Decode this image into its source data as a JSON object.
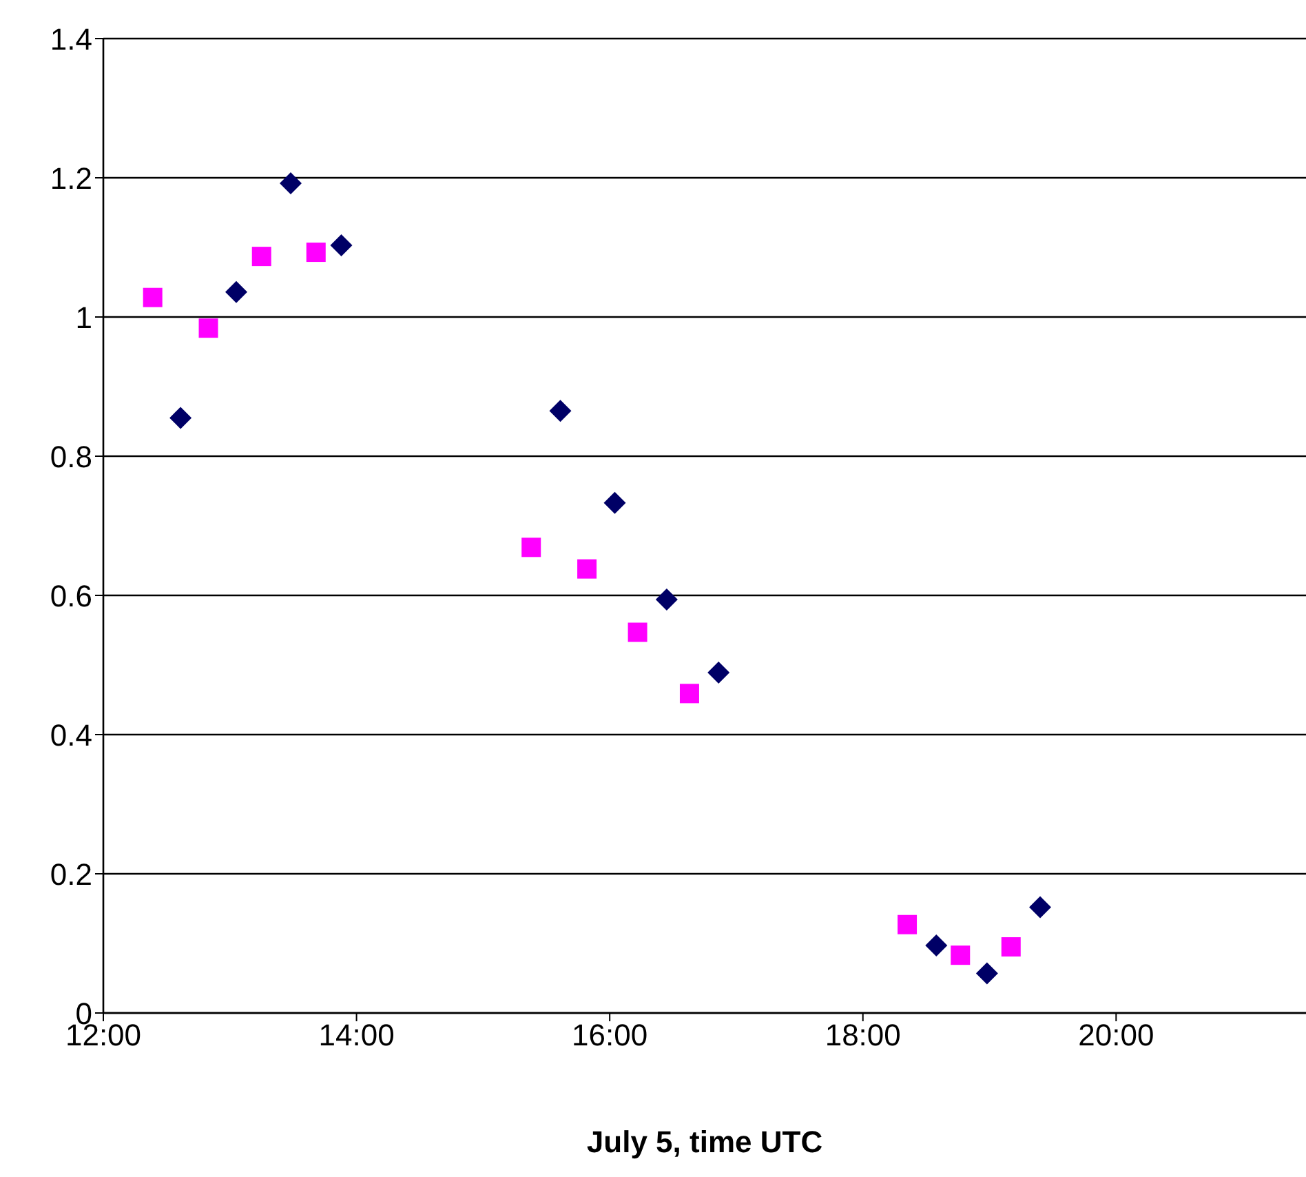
{
  "chart_data": {
    "type": "scatter",
    "xlabel": "July 5, time UTC",
    "xlim": [
      12,
      21.5
    ],
    "xticks": [
      {
        "value": 12,
        "label": "12:00"
      },
      {
        "value": 14,
        "label": "14:00"
      },
      {
        "value": 16,
        "label": "16:00"
      },
      {
        "value": 18,
        "label": "18:00"
      },
      {
        "value": 20,
        "label": "20:00"
      }
    ],
    "ylim": [
      0,
      1.4
    ],
    "yticks": [
      0,
      0.2,
      0.4,
      0.6,
      0.8,
      1,
      1.2,
      1.4
    ],
    "grid": "y",
    "series": [
      {
        "color": "#000066",
        "marker": "diamond",
        "x": [
          12.61,
          13.05,
          13.48,
          13.88,
          15.61,
          16.04,
          16.45,
          16.86,
          18.58,
          18.98,
          19.4
        ],
        "values": [
          0.855,
          1.036,
          1.192,
          1.103,
          0.865,
          0.733,
          0.594,
          0.489,
          0.097,
          0.057,
          0.152
        ]
      },
      {
        "color": "#ff00ff",
        "marker": "square",
        "x": [
          12.39,
          12.83,
          13.25,
          13.68,
          15.38,
          15.82,
          16.22,
          16.63,
          18.35,
          18.77,
          19.17
        ],
        "values": [
          1.028,
          0.984,
          1.087,
          1.093,
          0.669,
          0.638,
          0.547,
          0.459,
          0.127,
          0.083,
          0.095
        ]
      }
    ]
  }
}
